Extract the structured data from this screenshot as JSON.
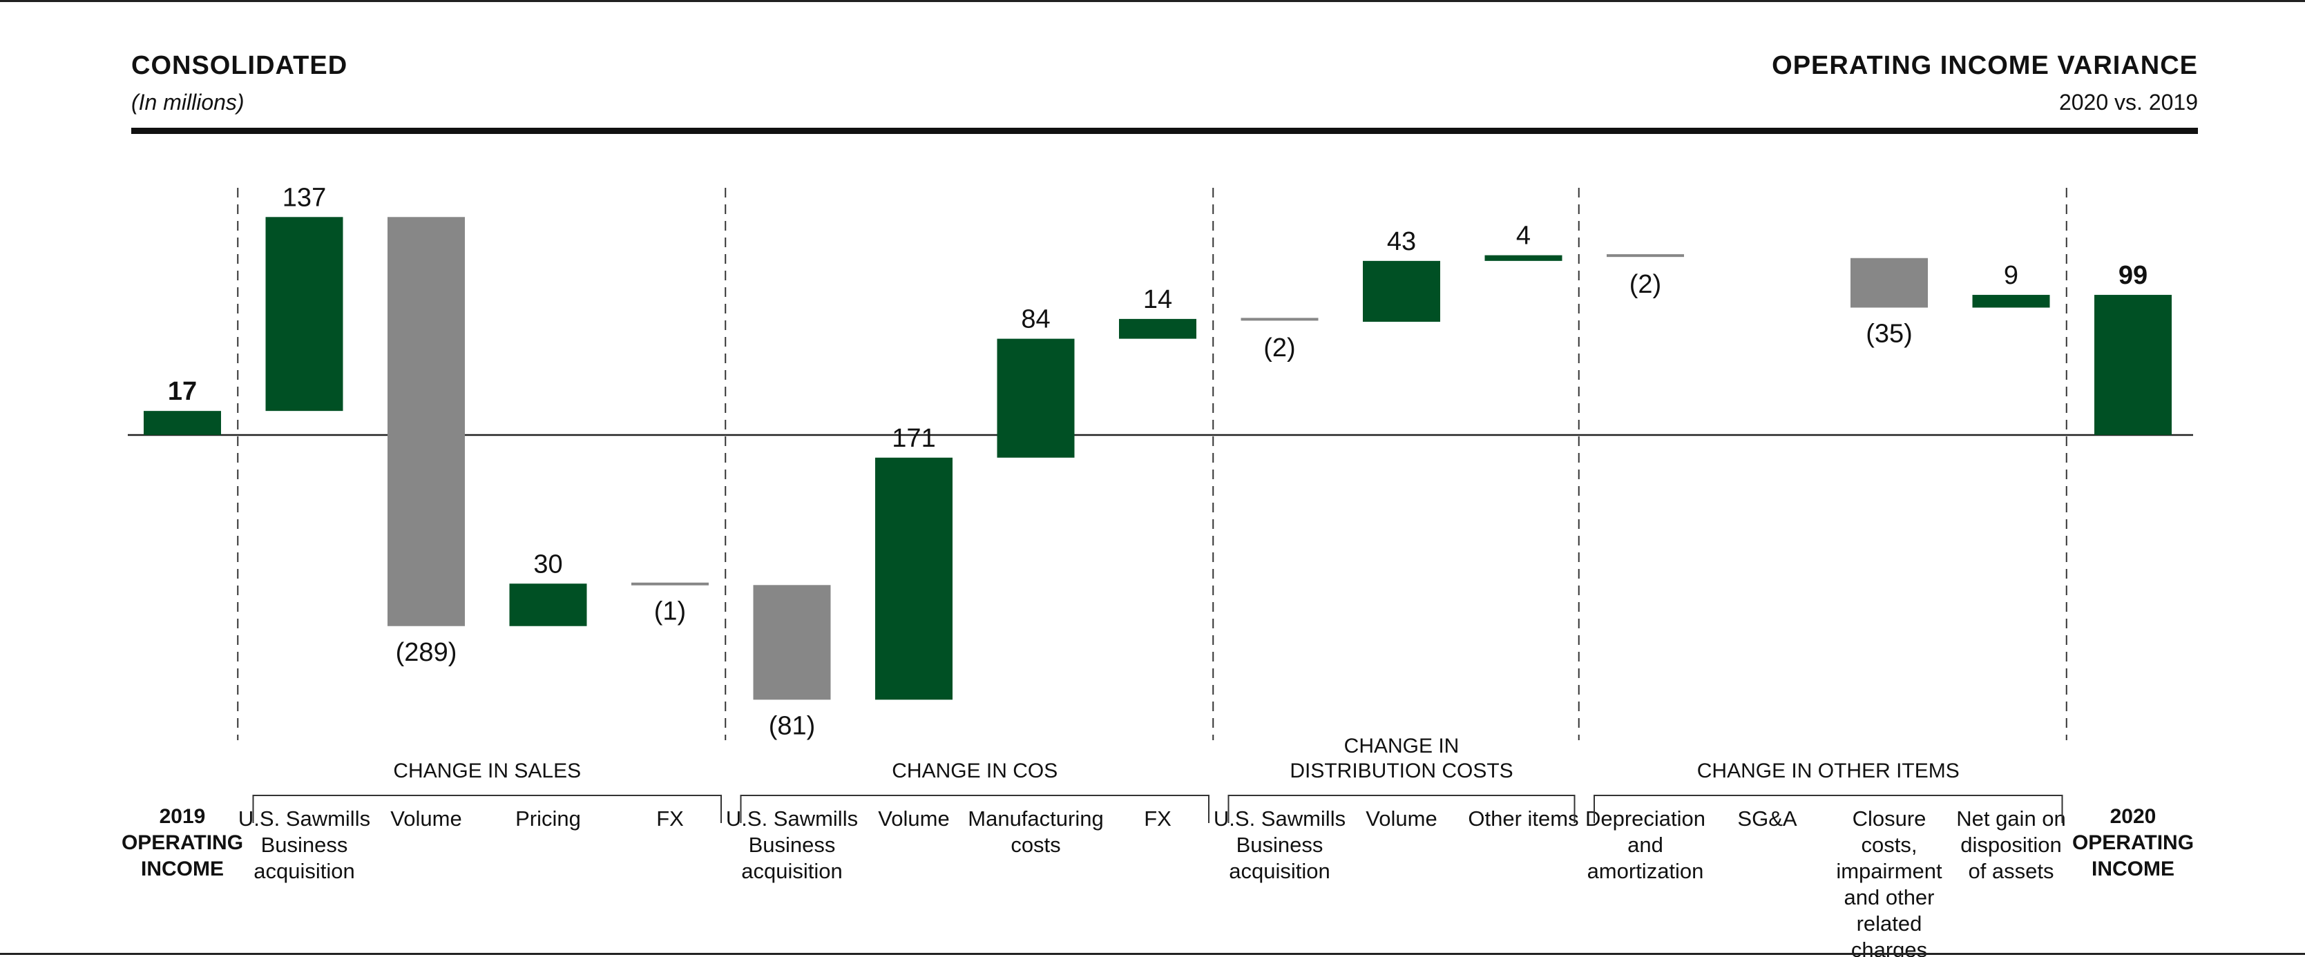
{
  "header": {
    "title_left": "CONSOLIDATED",
    "subtitle_left": "(In millions)",
    "title_right": "OPERATING INCOME VARIANCE",
    "subtitle_right": "2020 vs. 2019"
  },
  "colors": {
    "positive": "#005024",
    "negative": "#878787",
    "total": "#005024",
    "text": "#111111"
  },
  "chart_data": {
    "type": "waterfall",
    "title": "OPERATING INCOME VARIANCE",
    "subtitle": "2020 vs. 2019",
    "units": "(In millions)",
    "start": {
      "label": "2019 OPERATING INCOME",
      "value": 17,
      "value_label": "17"
    },
    "end": {
      "label": "2020 OPERATING INCOME",
      "value": 99,
      "value_label": "99"
    },
    "groups": [
      {
        "name": "CHANGE IN SALES",
        "items": [
          {
            "label": "U.S. Sawmills Business acquisition",
            "value": 137,
            "value_label": "137"
          },
          {
            "label": "Volume",
            "value": -289,
            "value_label": "(289)"
          },
          {
            "label": "Pricing",
            "value": 30,
            "value_label": "30"
          },
          {
            "label": "FX",
            "value": -1,
            "value_label": "(1)"
          }
        ]
      },
      {
        "name": "CHANGE IN COS",
        "items": [
          {
            "label": "U.S. Sawmills Business acquisition",
            "value": -81,
            "value_label": "(81)"
          },
          {
            "label": "Volume",
            "value": 171,
            "value_label": "171"
          },
          {
            "label": "Manufacturing costs",
            "value": 84,
            "value_label": "84"
          },
          {
            "label": "FX",
            "value": 14,
            "value_label": "14"
          }
        ]
      },
      {
        "name": "CHANGE IN DISTRIBUTION COSTS",
        "items": [
          {
            "label": "U.S. Sawmills Business acquisition",
            "value": -2,
            "value_label": "(2)"
          },
          {
            "label": "Volume",
            "value": 43,
            "value_label": "43"
          },
          {
            "label": "Other items",
            "value": 4,
            "value_label": "4"
          }
        ]
      },
      {
        "name": "CHANGE IN OTHER ITEMS",
        "items": [
          {
            "label": "Depreciation and amortization",
            "value": -2,
            "value_label": "(2)"
          },
          {
            "label": "SG&A",
            "value": 0,
            "value_label": ""
          },
          {
            "label": "Closure costs, impairment and other related charges",
            "value": -35,
            "value_label": "(35)"
          },
          {
            "label": "Net gain on disposition of assets",
            "value": 9,
            "value_label": "9"
          }
        ]
      }
    ]
  }
}
